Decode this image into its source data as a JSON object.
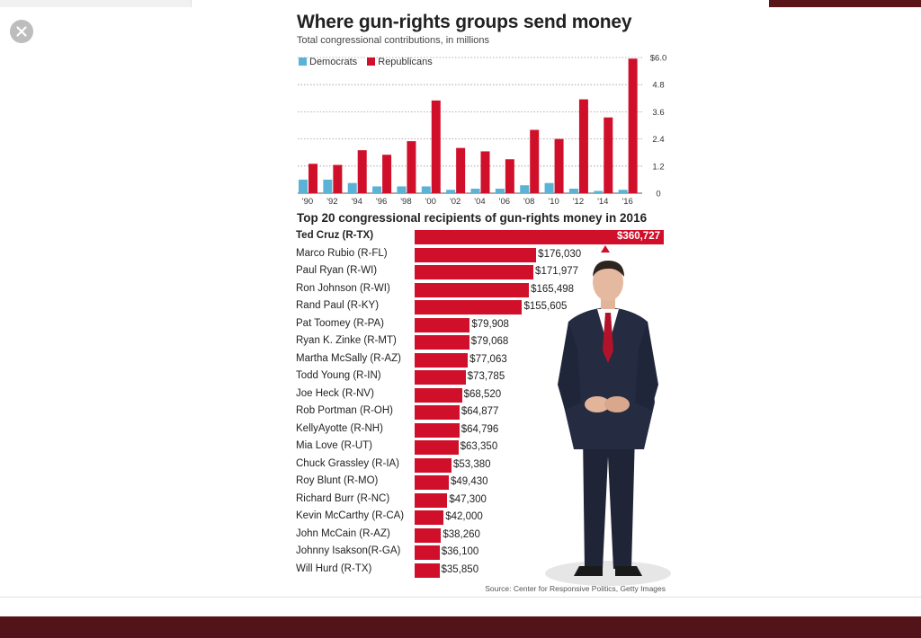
{
  "viewer": {
    "close_icon": "close-icon"
  },
  "infographic": {
    "headline": "Where gun-rights groups send money",
    "subhead": "Total congressional contributions, in millions",
    "section2_title": "Top 20 congressional recipients of gun-rights money in 2016",
    "source": "Source: Center for Responsive Politics, Getty Images",
    "photo": "standing-man-in-suit"
  },
  "colors": {
    "democrats": "#5ab2d6",
    "republicans": "#d0102a"
  },
  "chart_data": [
    {
      "type": "bar",
      "title": "Where gun-rights groups send money",
      "subtitle": "Total congressional contributions, in millions",
      "categories": [
        "'90",
        "'92",
        "'94",
        "'96",
        "'98",
        "'00",
        "'02",
        "'04",
        "'06",
        "'08",
        "'10",
        "'12",
        "'14",
        "'16"
      ],
      "series": [
        {
          "name": "Democrats",
          "values": [
            0.6,
            0.6,
            0.45,
            0.3,
            0.3,
            0.3,
            0.15,
            0.2,
            0.2,
            0.35,
            0.45,
            0.2,
            0.1,
            0.15
          ]
        },
        {
          "name": "Republicans",
          "values": [
            1.3,
            1.25,
            1.9,
            1.7,
            2.3,
            4.1,
            2.0,
            1.85,
            1.5,
            2.8,
            2.4,
            4.15,
            3.35,
            5.95
          ]
        }
      ],
      "yticks": [
        "$6.0",
        "4.8",
        "3.6",
        "2.4",
        "1.2",
        "0"
      ],
      "ylim": [
        0,
        6.0
      ],
      "grid": true,
      "legend": "top-left",
      "xlabel": "",
      "ylabel": ""
    },
    {
      "type": "bar",
      "orientation": "horizontal",
      "title": "Top 20 congressional recipients of gun-rights money in 2016",
      "categories": [
        "Ted Cruz (R-TX)",
        "Marco Rubio (R-FL)",
        "Paul Ryan (R-WI)",
        "Ron Johnson (R-WI)",
        "Rand Paul (R-KY)",
        "Pat Toomey (R-PA)",
        "Ryan K. Zinke (R-MT)",
        "Martha McSally (R-AZ)",
        "Todd Young (R-IN)",
        "Joe Heck (R-NV)",
        "Rob Portman (R-OH)",
        "KellyAyotte (R-NH)",
        "Mia Love (R-UT)",
        "Chuck Grassley (R-IA)",
        "Roy Blunt (R-MO)",
        "Richard Burr (R-NC)",
        "Kevin McCarthy (R-CA)",
        "John McCain (R-AZ)",
        "Johnny  Isakson(R-GA)",
        "Will Hurd (R-TX)"
      ],
      "values": [
        360727,
        176030,
        171977,
        165498,
        155605,
        79908,
        79068,
        77063,
        73785,
        68520,
        64877,
        64796,
        63350,
        53380,
        49430,
        47300,
        42000,
        38260,
        36100,
        35850
      ],
      "labels": [
        "$360,727",
        "$176,030",
        "$171,977",
        "$165,498",
        "$155,605",
        "$79,908",
        "$79,068",
        "$77,063",
        "$73,785",
        "$68,520",
        "$64,877",
        "$64,796",
        "$63,350",
        "$53,380",
        "$49,430",
        "$47,300",
        "$42,000",
        "$38,260",
        "$36,100",
        "$35,850"
      ]
    }
  ]
}
